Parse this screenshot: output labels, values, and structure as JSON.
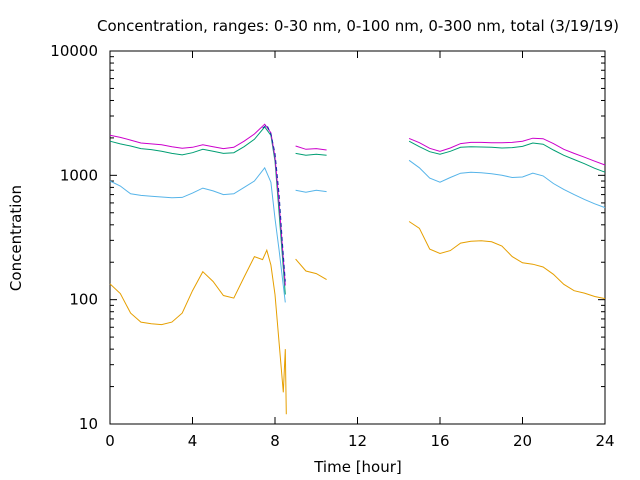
{
  "chart_data": {
    "type": "line",
    "title": "Concentration, ranges: 0-30 nm, 0-100 nm, 0-300 nm, total (3/19/19)",
    "xlabel": "Time [hour]",
    "ylabel": "Concentration",
    "xlim": [
      0,
      24
    ],
    "ylim": [
      10,
      10000
    ],
    "yscale": "log",
    "grid": false,
    "legend": "none",
    "xticks": [
      0,
      4,
      8,
      12,
      16,
      20,
      24
    ],
    "xtick_labels": [
      "0",
      "4",
      "8",
      "12",
      "16",
      "20",
      "24"
    ],
    "yticks": [
      10,
      100,
      1000,
      10000
    ],
    "ytick_labels": [
      "10",
      "100",
      "1000",
      "10000"
    ],
    "series": [
      {
        "color": "#e69f00",
        "segments": [
          [
            [
              0,
              134
            ],
            [
              0.5,
              112
            ],
            [
              1,
              78
            ],
            [
              1.5,
              66
            ],
            [
              2,
              64
            ],
            [
              2.5,
              63
            ],
            [
              3,
              66
            ],
            [
              3.5,
              78
            ],
            [
              4,
              118
            ],
            [
              4.5,
              168
            ],
            [
              5,
              140
            ],
            [
              5.5,
              108
            ],
            [
              6,
              103
            ],
            [
              6.5,
              152
            ],
            [
              7,
              222
            ],
            [
              7.4,
              210
            ],
            [
              7.6,
              250
            ],
            [
              7.8,
              190
            ],
            [
              8.0,
              110
            ],
            [
              8.2,
              45
            ],
            [
              8.4,
              18
            ],
            [
              8.5,
              40
            ],
            [
              8.55,
              12
            ]
          ],
          [
            [
              9,
              212
            ],
            [
              9.5,
              170
            ],
            [
              10,
              162
            ],
            [
              10.5,
              145
            ]
          ],
          [
            [
              14.5,
              425
            ],
            [
              15,
              375
            ],
            [
              15.5,
              255
            ],
            [
              16,
              235
            ],
            [
              16.5,
              248
            ],
            [
              17,
              285
            ],
            [
              17.5,
              295
            ],
            [
              18,
              298
            ],
            [
              18.5,
              292
            ],
            [
              19,
              270
            ],
            [
              19.5,
              222
            ],
            [
              20,
              198
            ],
            [
              20.5,
              193
            ],
            [
              21,
              183
            ],
            [
              21.5,
              160
            ],
            [
              22,
              133
            ],
            [
              22.5,
              118
            ],
            [
              23,
              113
            ],
            [
              23.5,
              106
            ],
            [
              24,
              102
            ]
          ]
        ]
      },
      {
        "color": "#56b4e9",
        "segments": [
          [
            [
              0,
              900
            ],
            [
              0.5,
              820
            ],
            [
              1,
              710
            ],
            [
              1.5,
              690
            ],
            [
              2,
              680
            ],
            [
              2.5,
              670
            ],
            [
              3,
              660
            ],
            [
              3.5,
              665
            ],
            [
              4,
              720
            ],
            [
              4.5,
              790
            ],
            [
              5,
              750
            ],
            [
              5.5,
              700
            ],
            [
              6,
              710
            ],
            [
              6.5,
              800
            ],
            [
              7,
              900
            ],
            [
              7.5,
              1150
            ],
            [
              7.8,
              880
            ],
            [
              8.0,
              450
            ],
            [
              8.2,
              250
            ],
            [
              8.5,
              95
            ]
          ],
          [
            [
              9,
              760
            ],
            [
              9.5,
              730
            ],
            [
              10,
              760
            ],
            [
              10.5,
              740
            ]
          ],
          [
            [
              14.5,
              1320
            ],
            [
              15,
              1150
            ],
            [
              15.5,
              950
            ],
            [
              16,
              880
            ],
            [
              16.5,
              960
            ],
            [
              17,
              1040
            ],
            [
              17.5,
              1060
            ],
            [
              18,
              1050
            ],
            [
              18.5,
              1030
            ],
            [
              19,
              1000
            ],
            [
              19.5,
              960
            ],
            [
              20,
              970
            ],
            [
              20.5,
              1040
            ],
            [
              21,
              990
            ],
            [
              21.5,
              860
            ],
            [
              22,
              770
            ],
            [
              22.5,
              700
            ],
            [
              23,
              640
            ],
            [
              23.5,
              590
            ],
            [
              24,
              550
            ]
          ]
        ]
      },
      {
        "color": "#009e73",
        "segments": [
          [
            [
              0,
              1880
            ],
            [
              0.5,
              1790
            ],
            [
              1,
              1720
            ],
            [
              1.5,
              1640
            ],
            [
              2,
              1610
            ],
            [
              2.5,
              1560
            ],
            [
              3,
              1500
            ],
            [
              3.5,
              1460
            ],
            [
              4,
              1520
            ],
            [
              4.5,
              1620
            ],
            [
              5,
              1560
            ],
            [
              5.5,
              1500
            ],
            [
              6,
              1520
            ],
            [
              6.5,
              1700
            ],
            [
              7,
              1950
            ],
            [
              7.5,
              2450
            ],
            [
              7.8,
              2100
            ],
            [
              8.0,
              1300
            ],
            [
              8.2,
              500
            ],
            [
              8.5,
              110
            ]
          ],
          [
            [
              9,
              1500
            ],
            [
              9.5,
              1450
            ],
            [
              10,
              1480
            ],
            [
              10.5,
              1450
            ]
          ],
          [
            [
              14.5,
              1880
            ],
            [
              15,
              1700
            ],
            [
              15.5,
              1550
            ],
            [
              16,
              1480
            ],
            [
              16.5,
              1560
            ],
            [
              17,
              1680
            ],
            [
              17.5,
              1700
            ],
            [
              18,
              1690
            ],
            [
              18.5,
              1680
            ],
            [
              19,
              1660
            ],
            [
              19.5,
              1670
            ],
            [
              20,
              1710
            ],
            [
              20.5,
              1820
            ],
            [
              21,
              1780
            ],
            [
              21.5,
              1600
            ],
            [
              22,
              1450
            ],
            [
              22.5,
              1340
            ],
            [
              23,
              1240
            ],
            [
              23.5,
              1140
            ],
            [
              24,
              1060
            ]
          ]
        ]
      },
      {
        "color": "#cc00cc",
        "segments": [
          [
            [
              0,
              2100
            ],
            [
              0.5,
              2020
            ],
            [
              1,
              1920
            ],
            [
              1.5,
              1820
            ],
            [
              2,
              1790
            ],
            [
              2.5,
              1760
            ],
            [
              3,
              1700
            ],
            [
              3.5,
              1650
            ],
            [
              4,
              1680
            ],
            [
              4.5,
              1760
            ],
            [
              5,
              1700
            ],
            [
              5.5,
              1640
            ],
            [
              6,
              1680
            ],
            [
              6.5,
              1880
            ],
            [
              7,
              2150
            ],
            [
              7.5,
              2580
            ],
            [
              7.8,
              2200
            ],
            [
              8.0,
              1400
            ],
            [
              8.2,
              600
            ],
            [
              8.5,
              130
            ]
          ],
          [
            [
              9,
              1720
            ],
            [
              9.5,
              1620
            ],
            [
              10,
              1640
            ],
            [
              10.5,
              1600
            ]
          ],
          [
            [
              14.5,
              1980
            ],
            [
              15,
              1830
            ],
            [
              15.5,
              1650
            ],
            [
              16,
              1560
            ],
            [
              16.5,
              1660
            ],
            [
              17,
              1800
            ],
            [
              17.5,
              1840
            ],
            [
              18,
              1840
            ],
            [
              18.5,
              1830
            ],
            [
              19,
              1830
            ],
            [
              19.5,
              1840
            ],
            [
              20,
              1880
            ],
            [
              20.5,
              1990
            ],
            [
              21,
              1970
            ],
            [
              21.5,
              1800
            ],
            [
              22,
              1620
            ],
            [
              22.5,
              1500
            ],
            [
              23,
              1400
            ],
            [
              23.5,
              1300
            ],
            [
              24,
              1210
            ]
          ]
        ]
      },
      {
        "color": "#0c2fa8",
        "dashed": true,
        "segments": [
          [
            [
              7.4,
              2400
            ],
            [
              7.6,
              2550
            ],
            [
              7.8,
              2150
            ],
            [
              8.0,
              1500
            ],
            [
              8.2,
              700
            ],
            [
              8.35,
              300
            ],
            [
              8.5,
              140
            ]
          ]
        ]
      }
    ]
  }
}
